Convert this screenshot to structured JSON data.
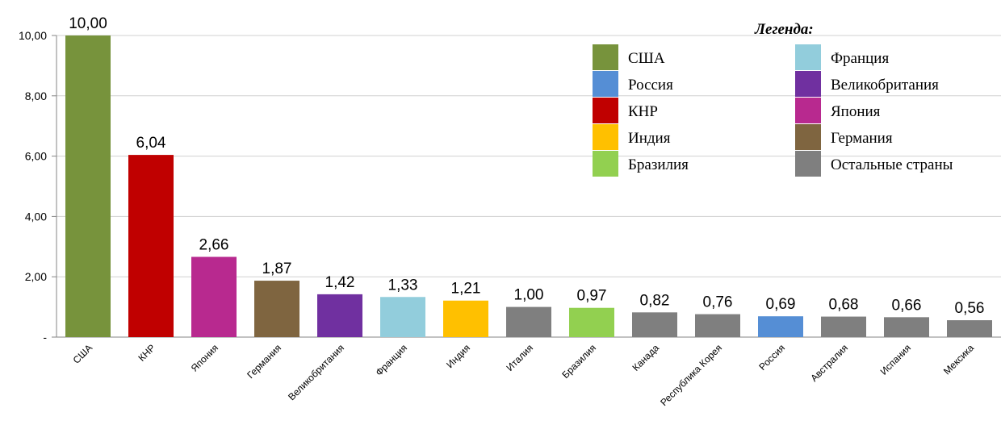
{
  "chart_data": {
    "type": "bar",
    "categories": [
      "США",
      "КНР",
      "Япония",
      "Германия",
      "Великобритания",
      "Франция",
      "Индия",
      "Италия",
      "Бразилия",
      "Канада",
      "Республика Корея",
      "Россия",
      "Австралия",
      "Испания",
      "Мексика"
    ],
    "values": [
      10.0,
      6.04,
      2.66,
      1.87,
      1.42,
      1.33,
      1.21,
      1.0,
      0.97,
      0.82,
      0.76,
      0.69,
      0.68,
      0.66,
      0.56
    ],
    "value_labels": [
      "10,00",
      "6,04",
      "2,66",
      "1,87",
      "1,42",
      "1,33",
      "1,21",
      "1,00",
      "0,97",
      "0,82",
      "0,76",
      "0,69",
      "0,68",
      "0,66",
      "0,56"
    ],
    "bar_colors": [
      "#77933c",
      "#c00000",
      "#b8298f",
      "#7f6540",
      "#7030a0",
      "#92cddc",
      "#ffc000",
      "#7f7f7f",
      "#92d050",
      "#7f7f7f",
      "#7f7f7f",
      "#558ed5",
      "#7f7f7f",
      "#7f7f7f",
      "#7f7f7f"
    ],
    "ylim": [
      0,
      10
    ],
    "yticks": [
      {
        "value": 0,
        "label": "-"
      },
      {
        "value": 2,
        "label": "2,00"
      },
      {
        "value": 4,
        "label": "4,00"
      },
      {
        "value": 6,
        "label": "6,00"
      },
      {
        "value": 8,
        "label": "8,00"
      },
      {
        "value": 10,
        "label": "10,00"
      }
    ],
    "grid": true,
    "legend": {
      "title": "Легенда:",
      "placement": "top-right",
      "items": [
        {
          "name": "США",
          "color": "#77933c"
        },
        {
          "name": "Россия",
          "color": "#558ed5"
        },
        {
          "name": "КНР",
          "color": "#c00000"
        },
        {
          "name": "Индия",
          "color": "#ffc000"
        },
        {
          "name": "Бразилия",
          "color": "#92d050"
        },
        {
          "name": "Франция",
          "color": "#92cddc"
        },
        {
          "name": "Великобритания",
          "color": "#7030a0"
        },
        {
          "name": "Япония",
          "color": "#b8298f"
        },
        {
          "name": "Германия",
          "color": "#7f6540"
        },
        {
          "name": "Остальные страны",
          "color": "#7f7f7f"
        }
      ]
    }
  }
}
